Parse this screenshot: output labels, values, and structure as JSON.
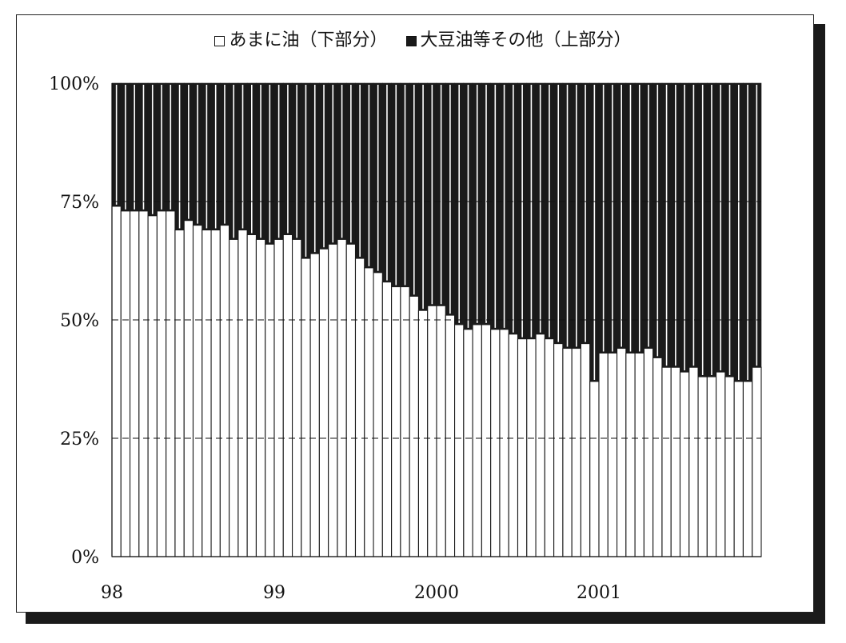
{
  "chart_data": {
    "type": "bar",
    "stacked": true,
    "normalized_percent": true,
    "legend": [
      {
        "label": "あまに油（下部分）",
        "color": "#ffffff"
      },
      {
        "label": "大豆油等その他（上部分）",
        "color": "#1a1a1a"
      }
    ],
    "x_tick_labels": [
      "98",
      "99",
      "2000",
      "2001"
    ],
    "y_tick_labels": [
      "0%",
      "25%",
      "50%",
      "75%",
      "100%"
    ],
    "ylim": [
      0,
      100
    ],
    "grid": "horizontal dashed at 25, 50, 75",
    "series": [
      {
        "name": "あまに油（下部分）",
        "values": [
          74,
          73,
          73,
          73,
          72,
          73,
          73,
          69,
          71,
          70,
          69,
          69,
          70,
          67,
          69,
          68,
          67,
          66,
          67,
          68,
          67,
          63,
          64,
          65,
          66,
          67,
          66,
          63,
          61,
          60,
          58,
          57,
          57,
          55,
          52,
          53,
          53,
          51,
          49,
          48,
          49,
          49,
          48,
          48,
          47,
          46,
          46,
          47,
          46,
          45,
          44,
          44,
          45,
          37,
          43,
          43,
          44,
          43,
          43,
          44,
          42,
          40,
          40,
          39,
          40,
          38,
          38,
          39,
          38,
          37,
          37,
          40
        ]
      },
      {
        "name": "大豆油等その他（上部分）",
        "values": [
          26,
          27,
          27,
          27,
          28,
          27,
          27,
          31,
          29,
          30,
          31,
          31,
          30,
          33,
          31,
          32,
          33,
          34,
          33,
          32,
          33,
          37,
          36,
          35,
          34,
          33,
          34,
          37,
          39,
          40,
          42,
          43,
          43,
          45,
          48,
          47,
          47,
          49,
          51,
          52,
          51,
          51,
          52,
          52,
          53,
          54,
          54,
          53,
          54,
          55,
          56,
          56,
          55,
          63,
          57,
          57,
          56,
          57,
          57,
          56,
          58,
          60,
          60,
          61,
          60,
          62,
          62,
          61,
          62,
          63,
          63,
          60
        ]
      }
    ]
  }
}
